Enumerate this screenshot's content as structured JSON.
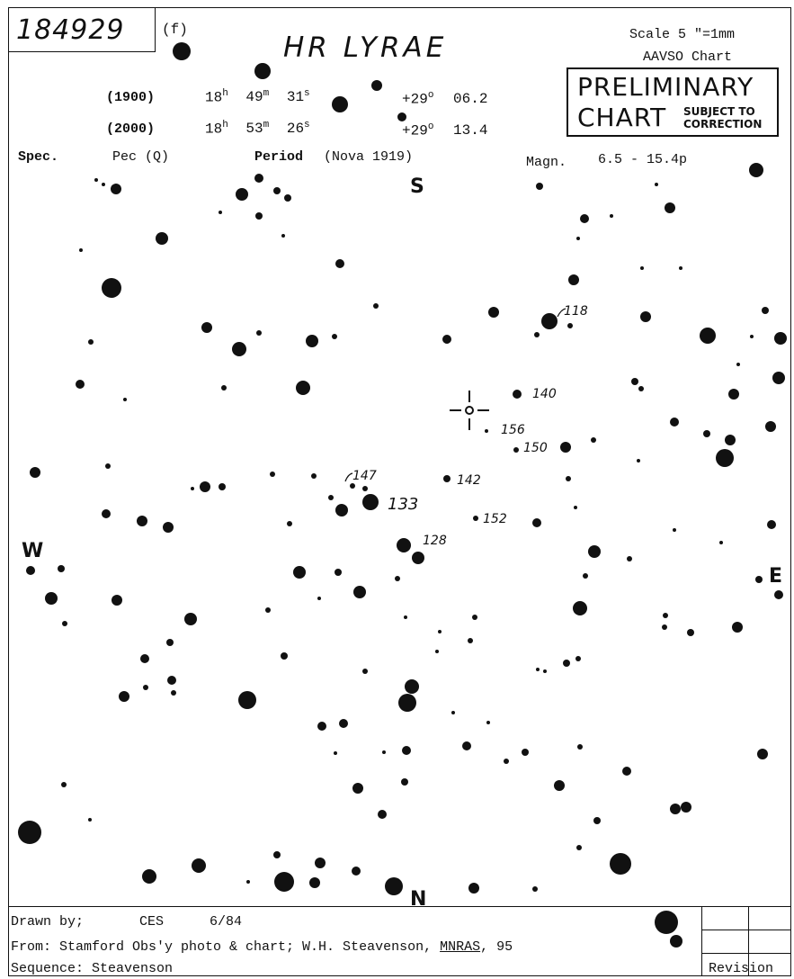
{
  "chart": {
    "id_number": "184929",
    "id_suffix": "(f)",
    "star_name": "HR LYRAE",
    "scale": "Scale  5 \"=1mm",
    "chart_type": "AAVSO Chart",
    "preliminary": "PRELIMINARY",
    "chart_word": "CHART",
    "subject_to": "SUBJECT TO",
    "correction": "CORRECTION"
  },
  "coordinates": {
    "epoch_1900": "(1900)",
    "ra_1900": {
      "h": "18",
      "m": "49",
      "s": "31"
    },
    "dec_1900": {
      "deg": "+29",
      "min": "06.2"
    },
    "epoch_2000": "(2000)",
    "ra_2000": {
      "h": "18",
      "m": "53",
      "s": "26"
    },
    "dec_2000": {
      "deg": "+29",
      "min": "13.4"
    },
    "unit_h": "h",
    "unit_m": "m",
    "unit_s": "s",
    "unit_deg": "o",
    "unit_arcmin": "'"
  },
  "info": {
    "spec_label": "Spec.",
    "spec_value": "Pec (Q)",
    "period_label": "Period",
    "period_value": "(Nova 1919)",
    "magn_label": "Magn.",
    "magn_value": "6.5 - 15.4p"
  },
  "directions": {
    "south": "S",
    "north": "N",
    "west": "W",
    "east": "E"
  },
  "comparison_labels": [
    "118",
    "140",
    "156",
    "150",
    "147",
    "142",
    "133",
    "152",
    "128"
  ],
  "footer": {
    "drawn_by_label": "Drawn by;",
    "drawn_by_value": "CES",
    "drawn_date": "6/84",
    "from_prefix": "From: Stamford Obs'y photo & chart; W.H. Steavenson, ",
    "from_journal": "MNRAS",
    "from_volume": ", 95",
    "sequence": "Sequence: Steavenson",
    "revision": "Revision"
  },
  "colors": {
    "ink": "#111111",
    "paper": "#ffffff"
  }
}
